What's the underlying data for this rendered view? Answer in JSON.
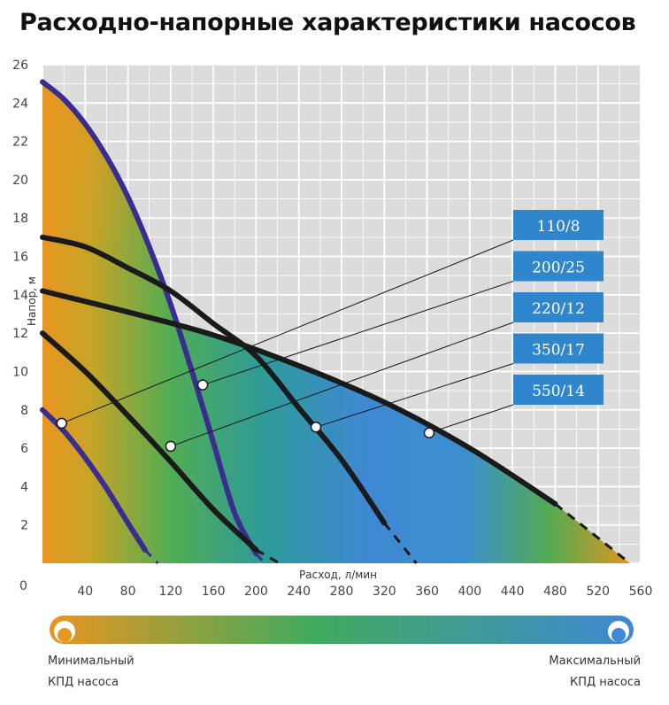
{
  "title": "Расходно-напорные характеристики насосов",
  "chart_data": {
    "type": "line",
    "xlabel": "Расход, л/мин",
    "ylabel": "Напор, м",
    "xlim": [
      0,
      560
    ],
    "ylim": [
      0,
      26
    ],
    "x_ticks": [
      40,
      80,
      120,
      160,
      200,
      240,
      280,
      320,
      360,
      400,
      440,
      480,
      520,
      560
    ],
    "y_ticks": [
      2,
      4,
      6,
      8,
      10,
      12,
      14,
      16,
      18,
      20,
      22,
      24,
      26
    ],
    "origin_label": "0",
    "grid": true,
    "series": [
      {
        "name": "110/8",
        "color": "#3a2d8f",
        "x": [
          0,
          20,
          40,
          60,
          80,
          96,
          108
        ],
        "y": [
          8.0,
          6.9,
          5.5,
          3.9,
          2.1,
          0.7,
          0
        ]
      },
      {
        "name": "200/25",
        "color": "#3a2d8f",
        "x": [
          0,
          20,
          40,
          60,
          80,
          100,
          120,
          140,
          160,
          180,
          200,
          208
        ],
        "y": [
          25.1,
          24.2,
          22.9,
          21.2,
          19.1,
          16.5,
          13.5,
          10.0,
          6.3,
          2.6,
          0.5,
          0
        ]
      },
      {
        "name": "220/12",
        "color": "#1a1a1a",
        "x": [
          0,
          40,
          80,
          120,
          160,
          200,
          222
        ],
        "y": [
          12.0,
          10.0,
          7.7,
          5.3,
          2.8,
          0.7,
          0
        ]
      },
      {
        "name": "350/17",
        "color": "#1a1a1a",
        "x": [
          0,
          40,
          80,
          120,
          160,
          200,
          240,
          280,
          320,
          350
        ],
        "y": [
          17.0,
          16.5,
          15.4,
          14.2,
          12.5,
          10.8,
          8.1,
          5.4,
          2.1,
          0
        ]
      },
      {
        "name": "550/14",
        "color": "#1a1a1a",
        "x": [
          0,
          80,
          160,
          240,
          320,
          400,
          480,
          550
        ],
        "y": [
          14.2,
          13.1,
          11.9,
          10.3,
          8.4,
          6.0,
          3.1,
          0
        ]
      }
    ],
    "label_markers": [
      {
        "label": "110/8",
        "x": 18,
        "y": 7.3
      },
      {
        "label": "200/25",
        "x": 150,
        "y": 9.3
      },
      {
        "label": "220/12",
        "x": 120,
        "y": 6.1
      },
      {
        "label": "350/17",
        "x": 256,
        "y": 7.1
      },
      {
        "label": "550/14",
        "x": 362,
        "y": 6.8
      }
    ],
    "efficiency_colorbar": {
      "min_label_line1": "Минимальный",
      "min_label_line2": "КПД насоса",
      "max_label_line1": "Максимальный",
      "max_label_line2": "КПД насоса",
      "colors": [
        "#e8961f",
        "#40ab5e",
        "#3f88d3"
      ]
    }
  }
}
